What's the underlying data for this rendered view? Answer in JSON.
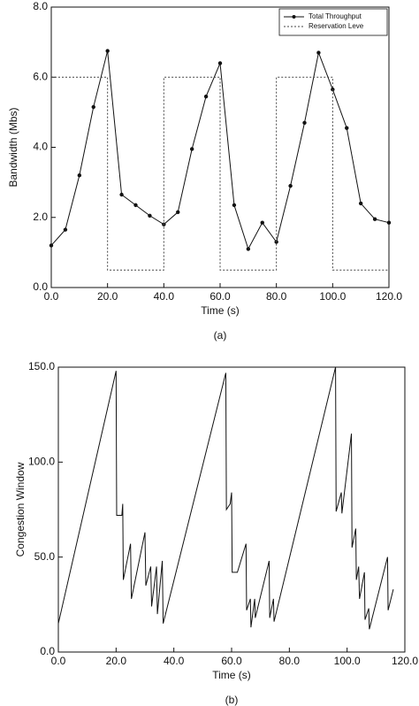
{
  "chart_data": [
    {
      "type": "line",
      "x_label": "Time (s)",
      "y_label": "Bandwidth (Mbs)",
      "caption": "(a)",
      "xlim": [
        0,
        120
      ],
      "ylim": [
        0,
        8
      ],
      "xticks": [
        {
          "value": 0,
          "label": "0.0"
        },
        {
          "value": 20,
          "label": "20.0"
        },
        {
          "value": 40,
          "label": "40.0"
        },
        {
          "value": 60,
          "label": "60.0"
        },
        {
          "value": 80,
          "label": "80.0"
        },
        {
          "value": 100,
          "label": "100.0"
        },
        {
          "value": 120,
          "label": "120.0"
        }
      ],
      "yticks": [
        {
          "value": 0,
          "label": "0.0"
        },
        {
          "value": 2,
          "label": "2.0"
        },
        {
          "value": 4,
          "label": "4.0"
        },
        {
          "value": 6,
          "label": "6.0"
        },
        {
          "value": 8,
          "label": "8.0"
        }
      ],
      "legend": "top-right",
      "series": [
        {
          "name": "Total Throughput",
          "color": "#111111",
          "line_style": "solid",
          "marker": true,
          "x": [
            0,
            5,
            10,
            15,
            20,
            25,
            30,
            35,
            40,
            45,
            50,
            55,
            60,
            65,
            70,
            75,
            80,
            85,
            90,
            95,
            100,
            105,
            110,
            115,
            120
          ],
          "values": [
            1.2,
            1.65,
            3.2,
            5.15,
            6.75,
            2.65,
            2.35,
            2.05,
            1.8,
            2.15,
            3.95,
            5.45,
            6.4,
            2.35,
            1.1,
            1.85,
            1.3,
            2.9,
            4.7,
            6.7,
            5.65,
            4.55,
            2.4,
            1.95,
            1.85
          ]
        },
        {
          "name": "Reservation Leve",
          "color": "#444444",
          "line_style": "dotted",
          "marker": false,
          "x": [
            0,
            20,
            20,
            40,
            40,
            60,
            60,
            80,
            80,
            100,
            100,
            120
          ],
          "values": [
            6,
            6,
            0.5,
            0.5,
            6,
            6,
            0.5,
            0.5,
            6,
            6,
            0.5,
            0.5
          ]
        }
      ]
    },
    {
      "type": "line",
      "x_label": "Time (s)",
      "y_label": "Congestion Window",
      "caption": "(b)",
      "xlim": [
        0,
        120
      ],
      "ylim": [
        0,
        150
      ],
      "xticks": [
        {
          "value": 0,
          "label": "0.0"
        },
        {
          "value": 20,
          "label": "20.0"
        },
        {
          "value": 40,
          "label": "40.0"
        },
        {
          "value": 60,
          "label": "60.0"
        },
        {
          "value": 80,
          "label": "80.0"
        },
        {
          "value": 100,
          "label": "100.0"
        },
        {
          "value": 120,
          "label": "120.0"
        }
      ],
      "yticks": [
        {
          "value": 0,
          "label": "0.0"
        },
        {
          "value": 50,
          "label": "50.0"
        },
        {
          "value": 100,
          "label": "100.0"
        },
        {
          "value": 150,
          "label": "150.0"
        }
      ],
      "series": [
        {
          "color": "#111111",
          "line_style": "solid",
          "marker": false,
          "x": [
            0,
            20,
            20.2,
            22,
            22.3,
            22.5,
            25,
            25.3,
            30,
            30.3,
            32,
            32.3,
            34,
            34.3,
            36,
            36.3,
            58,
            58.2,
            59.5,
            60,
            60.2,
            62,
            65,
            65.2,
            66.5,
            66.7,
            68,
            68.2,
            73,
            73.2,
            74.5,
            74.7,
            96,
            96.2,
            98,
            98.2,
            101.5,
            101.7,
            103,
            103.2,
            104,
            104.3,
            106,
            106.2,
            107.5,
            107.7,
            114,
            114.2,
            116
          ],
          "values": [
            15,
            148,
            72,
            72,
            78,
            38,
            57,
            28,
            63,
            35,
            45,
            24,
            45,
            20,
            48,
            15,
            147,
            75,
            78,
            84,
            42,
            42,
            57,
            22,
            28,
            13,
            28,
            18,
            48,
            18,
            28,
            16,
            150,
            74,
            84,
            73,
            115,
            55,
            65,
            38,
            45,
            28,
            42,
            17,
            23,
            12,
            50,
            22,
            33
          ]
        }
      ]
    }
  ]
}
